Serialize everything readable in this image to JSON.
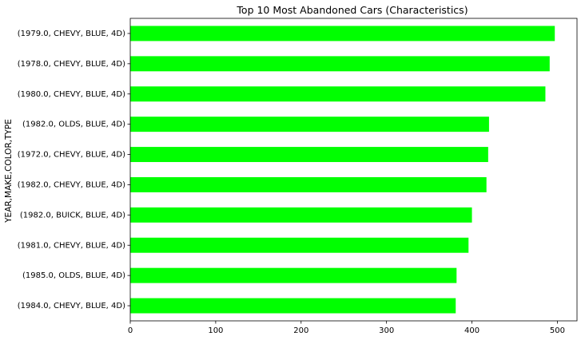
{
  "chart_data": {
    "type": "bar",
    "orientation": "horizontal",
    "title": "Top 10 Most Abandoned Cars (Characteristics)",
    "xlabel": "",
    "ylabel": "YEAR,MAKE,COLOR,TYPE",
    "categories": [
      "(1979.0, CHEVY, BLUE, 4D)",
      "(1978.0, CHEVY, BLUE, 4D)",
      "(1980.0, CHEVY, BLUE, 4D)",
      "(1982.0, OLDS, BLUE, 4D)",
      "(1972.0, CHEVY, BLUE, 4D)",
      "(1982.0, CHEVY, BLUE, 4D)",
      "(1982.0, BUICK, BLUE, 4D)",
      "(1981.0, CHEVY, BLUE, 4D)",
      "(1985.0, OLDS, BLUE, 4D)",
      "(1984.0, CHEVY, BLUE, 4D)"
    ],
    "values": [
      497,
      491,
      486,
      420,
      419,
      417,
      400,
      396,
      382,
      381
    ],
    "xlim": [
      0,
      523
    ],
    "xticks": [
      0,
      100,
      200,
      300,
      400,
      500
    ],
    "grid": false,
    "bar_color": "#00ff00"
  }
}
